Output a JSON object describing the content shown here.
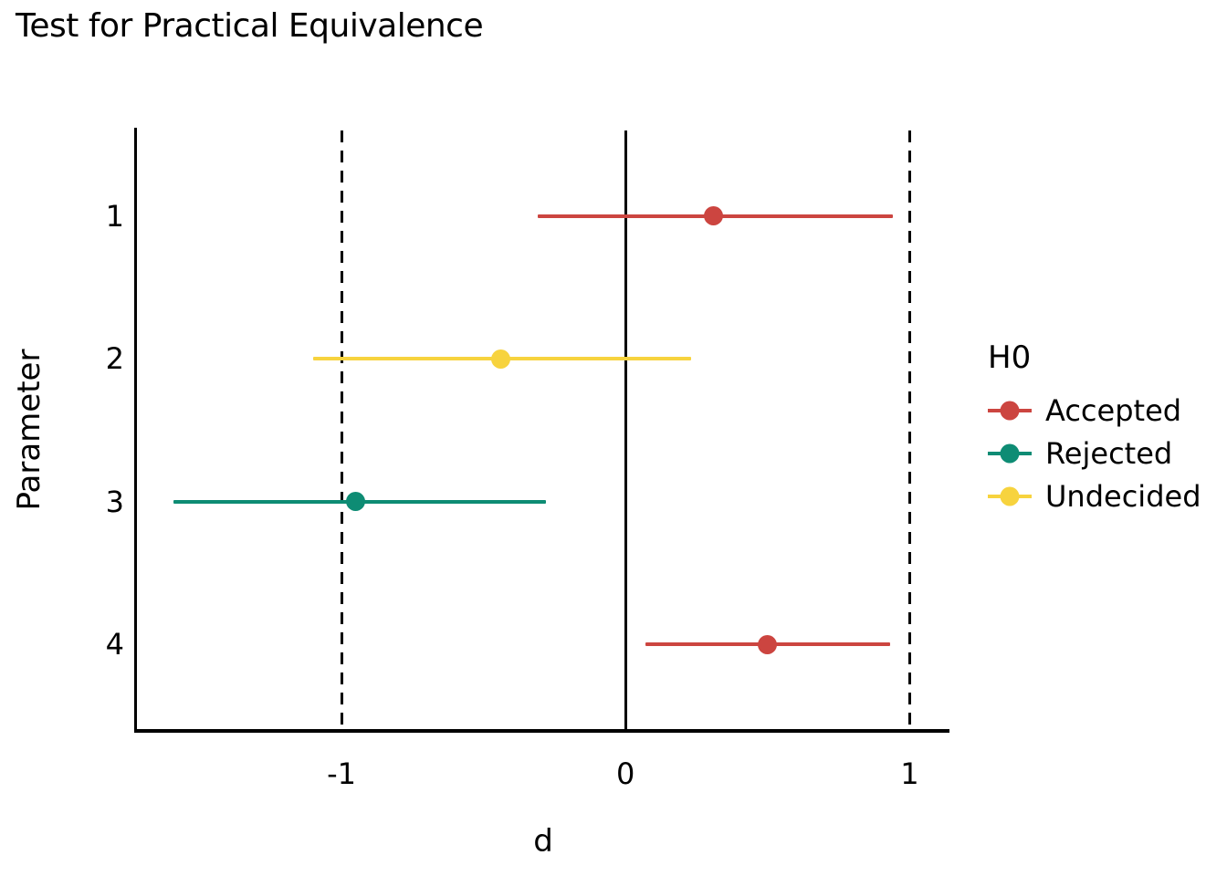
{
  "chart_data": {
    "type": "scatter",
    "subtype": "pointrange-equivalence-test",
    "title": "Test for Practical Equivalence",
    "xlabel": "d",
    "ylabel": "Parameter",
    "categories": [
      "1",
      "2",
      "3",
      "4"
    ],
    "series": [
      {
        "parameter": "1",
        "ci_low": -0.31,
        "estimate": 0.31,
        "ci_high": 0.94,
        "h0": "Accepted"
      },
      {
        "parameter": "2",
        "ci_low": -1.1,
        "estimate": -0.44,
        "ci_high": 0.23,
        "h0": "Undecided"
      },
      {
        "parameter": "3",
        "ci_low": -1.59,
        "estimate": -0.95,
        "ci_high": -0.28,
        "h0": "Rejected"
      },
      {
        "parameter": "4",
        "ci_low": 0.07,
        "estimate": 0.5,
        "ci_high": 0.93,
        "h0": "Accepted"
      }
    ],
    "x_ticks": [
      -1,
      0,
      1
    ],
    "x_tick_labels": [
      "-1",
      "0",
      "1"
    ],
    "xlim": [
      -1.72,
      1.14
    ],
    "rope_bounds": [
      -1,
      1
    ],
    "zero_line": 0,
    "grid": false,
    "legend": {
      "title": "H0",
      "position": "right",
      "entries": [
        {
          "label": "Accepted",
          "color": "#CC4540"
        },
        {
          "label": "Rejected",
          "color": "#0E8C74"
        },
        {
          "label": "Undecided",
          "color": "#F7D33E"
        }
      ]
    },
    "status_colors": {
      "Accepted": "#CC4540",
      "Rejected": "#0E8C74",
      "Undecided": "#F7D33E"
    },
    "axis_color": "#000000",
    "background_color": "#FFFFFF"
  }
}
